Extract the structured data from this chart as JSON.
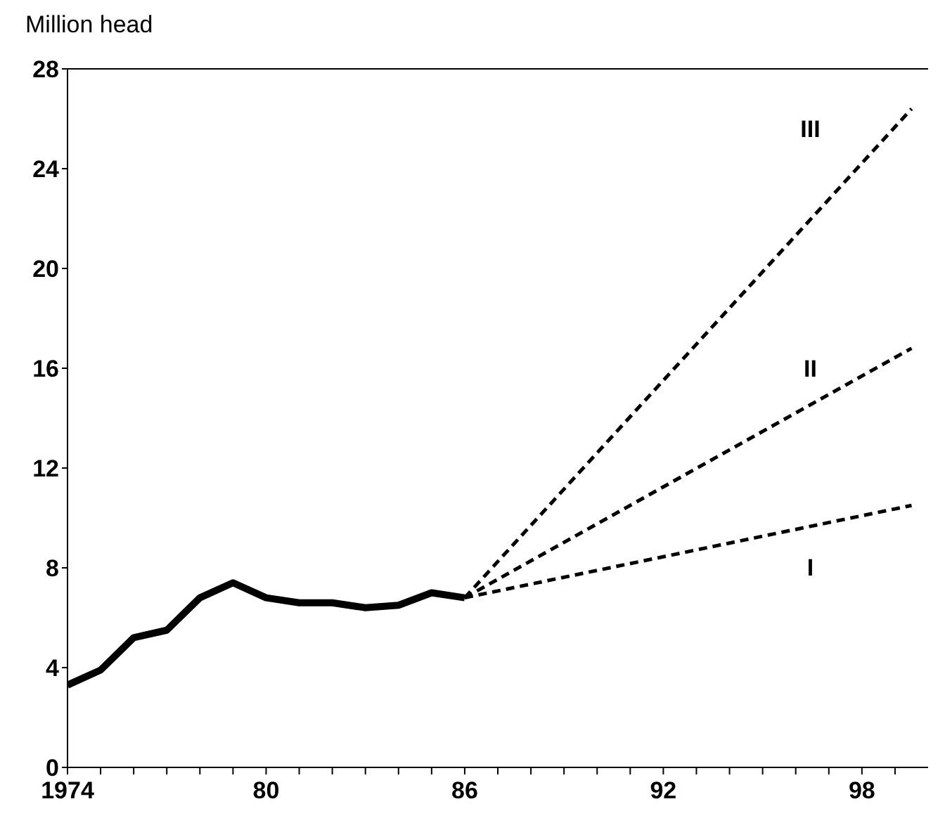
{
  "chart_data": {
    "type": "line",
    "ylabel": "Million head",
    "xlim": [
      1974,
      2000
    ],
    "xticks": [
      1974,
      {
        "value": 1975,
        "label": null
      },
      {
        "value": 1976,
        "label": null
      },
      {
        "value": 1977,
        "label": null
      },
      {
        "value": 1978,
        "label": null
      },
      {
        "value": 1979,
        "label": null
      },
      {
        "value": 1980,
        "label": "80"
      },
      {
        "value": 1981,
        "label": null
      },
      {
        "value": 1982,
        "label": null
      },
      {
        "value": 1983,
        "label": null
      },
      {
        "value": 1984,
        "label": null
      },
      {
        "value": 1985,
        "label": null
      },
      {
        "value": 1986,
        "label": "86"
      },
      {
        "value": 1987,
        "label": null
      },
      {
        "value": 1988,
        "label": null
      },
      {
        "value": 1989,
        "label": null
      },
      {
        "value": 1990,
        "label": null
      },
      {
        "value": 1991,
        "label": null
      },
      {
        "value": 1992,
        "label": "92"
      },
      {
        "value": 1993,
        "label": null
      },
      {
        "value": 1994,
        "label": null
      },
      {
        "value": 1995,
        "label": null
      },
      {
        "value": 1996,
        "label": null
      },
      {
        "value": 1997,
        "label": null
      },
      {
        "value": 1998,
        "label": "98"
      },
      {
        "value": 1999,
        "label": null
      }
    ],
    "ylim": [
      0,
      28
    ],
    "yticks": [
      0,
      4,
      8,
      12,
      16,
      20,
      24,
      28
    ],
    "grid": false,
    "marker": "none",
    "series": [
      {
        "color": "#000000",
        "line_style": "solid",
        "x": [
          1974,
          1975,
          1976,
          1977,
          1978,
          1979,
          1980,
          1981,
          1982,
          1983,
          1984,
          1985,
          1986
        ],
        "values": [
          3.3,
          3.9,
          5.2,
          5.5,
          6.8,
          7.4,
          6.8,
          6.6,
          6.6,
          6.4,
          6.5,
          7.0,
          6.8
        ]
      },
      {
        "name": "I",
        "color": "#000000",
        "line_style": "dashed",
        "x": [
          1986,
          1999.5
        ],
        "values": [
          6.8,
          10.5
        ]
      },
      {
        "name": "II",
        "color": "#000000",
        "line_style": "dashed",
        "x": [
          1986,
          1999.5
        ],
        "values": [
          6.8,
          16.8
        ]
      },
      {
        "name": "III",
        "color": "#000000",
        "line_style": "dashed",
        "x": [
          1986,
          1999.5
        ],
        "values": [
          6.8,
          26.4
        ]
      }
    ]
  }
}
